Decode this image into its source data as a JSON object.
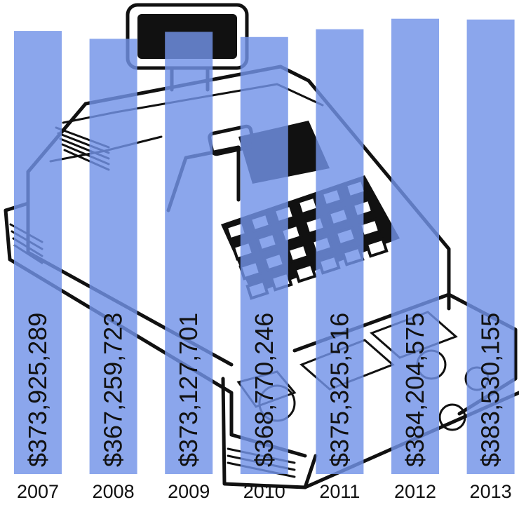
{
  "chart_data": {
    "type": "bar",
    "categories": [
      "2007",
      "2008",
      "2009",
      "2010",
      "2011",
      "2012",
      "2013"
    ],
    "values": [
      373925289,
      367259723,
      373127701,
      368770246,
      375325516,
      384204575,
      383530155
    ],
    "value_labels": [
      "$373,925,289",
      "$367,259,723",
      "$373,127,701",
      "$368,770,246",
      "$375,325,516",
      "$384,204,575",
      "$383,530,155"
    ],
    "title": "",
    "xlabel": "",
    "ylabel": "",
    "ylim": [
      0,
      400000000
    ],
    "grid": false,
    "legend": "none",
    "bar_color": "#7193E8",
    "label_orientation": "vertical",
    "background_illustration": "cash-register"
  }
}
